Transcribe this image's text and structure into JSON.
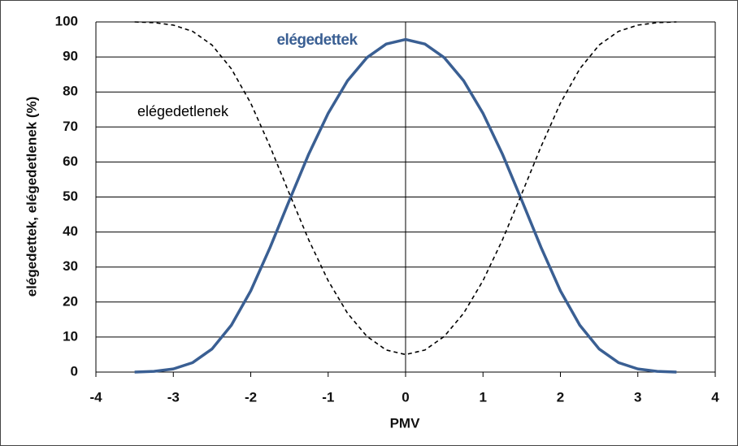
{
  "chart_data": {
    "type": "line",
    "x_label": "PMV",
    "y_label": "elégedettek, elégedetlenek (%)",
    "x": [
      -3.5,
      -3.25,
      -3,
      -2.75,
      -2.5,
      -2.25,
      -2,
      -1.75,
      -1.5,
      -1.25,
      -1,
      -0.75,
      -0.5,
      -0.25,
      0,
      0.25,
      0.5,
      0.75,
      1,
      1.25,
      1.5,
      1.75,
      2,
      2.25,
      2.5,
      2.75,
      3,
      3.25,
      3.5
    ],
    "series": [
      {
        "name": "elégedettek",
        "color": "#3a5f93",
        "dashed": false,
        "values": [
          0.0,
          0.2,
          0.9,
          2.7,
          6.6,
          13.4,
          23.2,
          35.6,
          49.1,
          62.3,
          73.9,
          83.2,
          89.8,
          93.7,
          95,
          93.7,
          89.8,
          83.2,
          73.9,
          62.3,
          49.1,
          35.6,
          23.2,
          13.4,
          6.6,
          2.7,
          0.9,
          0.2,
          0.0
        ]
      },
      {
        "name": "elégedetlenek",
        "color": "#000000",
        "dashed": true,
        "values": [
          100.0,
          99.8,
          99.1,
          97.3,
          93.4,
          86.6,
          76.8,
          64.4,
          50.9,
          37.7,
          26.1,
          16.8,
          10.2,
          6.3,
          5,
          6.3,
          10.2,
          16.8,
          26.1,
          37.7,
          50.9,
          64.4,
          76.8,
          86.6,
          93.4,
          97.3,
          99.1,
          99.8,
          100.0
        ]
      }
    ],
    "xlim": [
      -4,
      4
    ],
    "xticks": [
      -4,
      -3,
      -2,
      -1,
      0,
      1,
      2,
      3,
      4
    ],
    "ylim": [
      0,
      100
    ],
    "yticks": [
      0,
      10,
      20,
      30,
      40,
      50,
      60,
      70,
      80,
      90,
      100
    ],
    "grid": true
  }
}
